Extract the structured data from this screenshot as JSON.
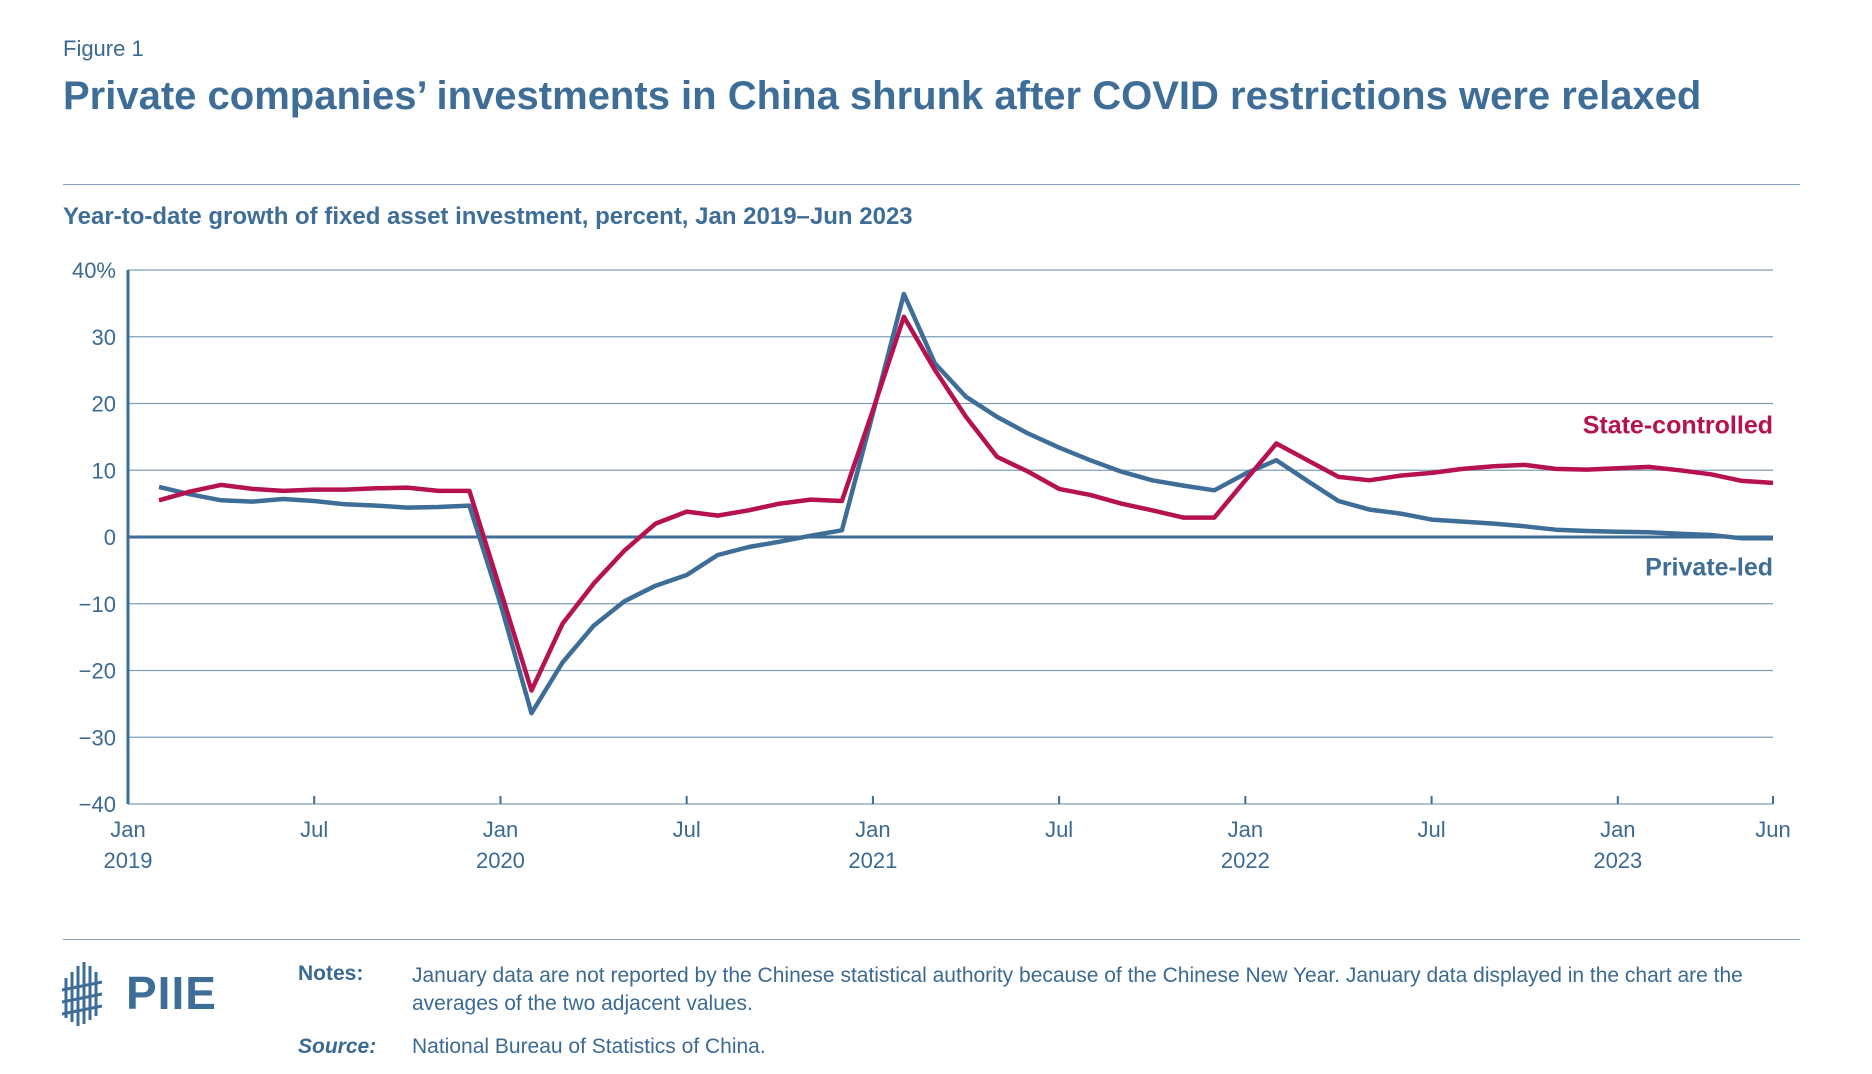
{
  "figure": {
    "label": "Figure 1",
    "title": "Private companies’ investments in China shrunk after COVID restrictions were relaxed",
    "subtitle": "Year-to-date growth of fixed asset investment, percent, Jan 2019–Jun 2023"
  },
  "colors": {
    "private": "#3e6e98",
    "state": "#b5124f",
    "grid": "#7f9fbb",
    "axis": "#3e6e98"
  },
  "chart_data": {
    "type": "line",
    "title": "Year-to-date growth of fixed asset investment, percent, Jan 2019–Jun 2023",
    "xlabel": "",
    "ylabel": "",
    "ylim": [
      -40,
      40
    ],
    "yticks": [
      {
        "value": 40,
        "label": "40%"
      },
      {
        "value": 30,
        "label": "30"
      },
      {
        "value": 20,
        "label": "20"
      },
      {
        "value": 10,
        "label": "10"
      },
      {
        "value": 0,
        "label": "0"
      },
      {
        "value": -10,
        "label": "−10"
      },
      {
        "value": -20,
        "label": "−20"
      },
      {
        "value": -30,
        "label": "−30"
      },
      {
        "value": -40,
        "label": "−40"
      }
    ],
    "xlim": [
      0,
      53
    ],
    "xticks": [
      {
        "value": 0,
        "label": "Jan",
        "year": "2019"
      },
      {
        "value": 6,
        "label": "Jul",
        "year": ""
      },
      {
        "value": 12,
        "label": "Jan",
        "year": "2020"
      },
      {
        "value": 18,
        "label": "Jul",
        "year": ""
      },
      {
        "value": 24,
        "label": "Jan",
        "year": "2021"
      },
      {
        "value": 30,
        "label": "Jul",
        "year": ""
      },
      {
        "value": 36,
        "label": "Jan",
        "year": "2022"
      },
      {
        "value": 42,
        "label": "Jul",
        "year": ""
      },
      {
        "value": 48,
        "label": "Jan",
        "year": "2023"
      },
      {
        "value": 53,
        "label": "Jun",
        "year": ""
      }
    ],
    "grid": true,
    "series": [
      {
        "name": "State-controlled",
        "label": "State-controlled",
        "x": [
          1,
          2,
          3,
          4,
          5,
          6,
          7,
          8,
          9,
          10,
          11,
          12,
          13,
          14,
          15,
          16,
          17,
          18,
          19,
          20,
          21,
          22,
          23,
          24,
          25,
          26,
          27,
          28,
          29,
          30,
          31,
          32,
          33,
          34,
          35,
          36,
          37,
          38,
          39,
          40,
          41,
          42,
          43,
          44,
          45,
          46,
          47,
          48,
          49,
          50,
          51,
          52,
          53
        ],
        "values": [
          5.5,
          6.8,
          7.8,
          7.2,
          6.9,
          7.1,
          7.1,
          7.3,
          7.4,
          6.9,
          6.9,
          -8.0,
          -23.0,
          -13.0,
          -7.0,
          -2.0,
          2.0,
          3.8,
          3.2,
          4.0,
          5.0,
          5.6,
          5.4,
          19.0,
          33.0,
          25.0,
          18.0,
          12.0,
          9.8,
          7.2,
          6.3,
          5.0,
          4.0,
          2.9,
          2.9,
          8.5,
          14.0,
          11.5,
          9.0,
          8.5,
          9.2,
          9.6,
          10.2,
          10.6,
          10.8,
          10.2,
          10.1,
          10.3,
          10.5,
          10.0,
          9.4,
          8.4,
          8.1
        ]
      },
      {
        "name": "Private-led",
        "label": "Private-led",
        "x": [
          1,
          2,
          3,
          4,
          5,
          6,
          7,
          8,
          9,
          10,
          11,
          12,
          13,
          14,
          15,
          16,
          17,
          18,
          19,
          20,
          21,
          22,
          23,
          24,
          25,
          26,
          27,
          28,
          29,
          30,
          31,
          32,
          33,
          34,
          35,
          36,
          37,
          38,
          39,
          40,
          41,
          42,
          43,
          44,
          45,
          46,
          47,
          48,
          49,
          50,
          51,
          52,
          53
        ],
        "values": [
          7.5,
          6.4,
          5.5,
          5.3,
          5.7,
          5.4,
          4.9,
          4.7,
          4.4,
          4.5,
          4.7,
          -10.0,
          -26.4,
          -18.8,
          -13.3,
          -9.6,
          -7.3,
          -5.7,
          -2.7,
          -1.5,
          -0.7,
          0.2,
          1.0,
          18.5,
          36.4,
          26.0,
          21.0,
          18.0,
          15.5,
          13.4,
          11.5,
          9.8,
          8.5,
          7.7,
          7.0,
          9.5,
          11.5,
          8.4,
          5.4,
          4.1,
          3.5,
          2.6,
          2.3,
          2.0,
          1.6,
          1.1,
          0.9,
          0.8,
          0.7,
          0.5,
          0.3,
          -0.2,
          -0.2
        ]
      }
    ]
  },
  "footer": {
    "logo_text": "PIIE",
    "notes_label": "Notes:",
    "notes_text": "January data are not reported by the Chinese statistical authority because of the Chinese New Year. January data displayed in the chart are the averages of the two adjacent values.",
    "source_label": "Source:",
    "source_text": "National Bureau of Statistics of China."
  }
}
